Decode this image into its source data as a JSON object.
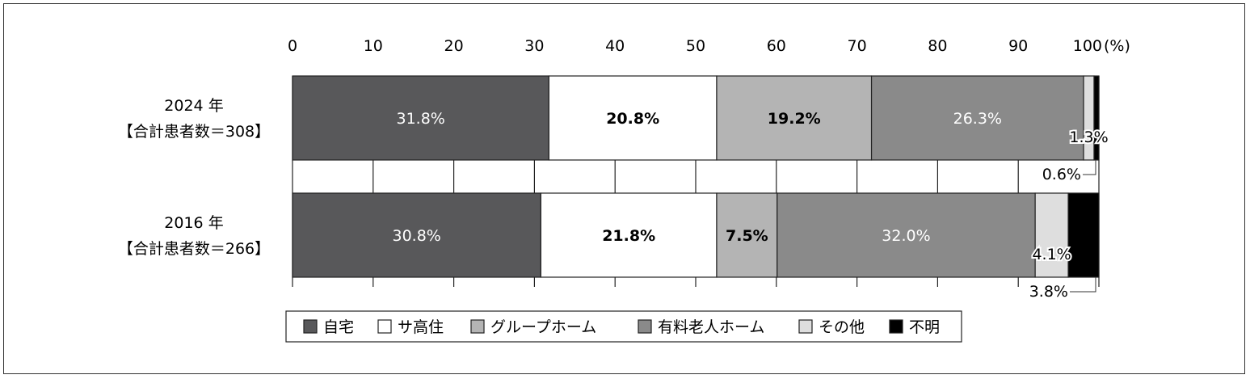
{
  "chart_data": {
    "type": "bar",
    "orientation": "horizontal",
    "stacked": true,
    "percent": true,
    "title": "",
    "xlabel": "",
    "ylabel": "",
    "x_unit": "(%)",
    "xlim": [
      0,
      100
    ],
    "x_ticks": [
      0,
      10,
      20,
      30,
      40,
      50,
      60,
      70,
      80,
      90,
      100
    ],
    "grid": true,
    "legend_position": "bottom",
    "categories": [
      {
        "year": "2024 年",
        "count_label": "【合計患者数＝308】"
      },
      {
        "year": "2016 年",
        "count_label": "【合計患者数＝266】"
      }
    ],
    "series": [
      {
        "name": "自宅",
        "color": "#58585a",
        "label_color": "#ffffff",
        "values": [
          31.8,
          30.8
        ],
        "labels": [
          "31.8%",
          "30.8%"
        ]
      },
      {
        "name": "サ高住",
        "color": "#ffffff",
        "label_color": "#000000",
        "values": [
          20.8,
          21.8
        ],
        "labels": [
          "20.8%",
          "21.8%"
        ]
      },
      {
        "name": "グループホーム",
        "color": "#b4b4b4",
        "label_color": "#000000",
        "values": [
          19.2,
          7.5
        ],
        "labels": [
          "19.2%",
          "7.5%"
        ]
      },
      {
        "name": "有料老人ホーム",
        "color": "#8a8a8a",
        "label_color": "#ffffff",
        "values": [
          26.3,
          32.0
        ],
        "labels": [
          "26.3%",
          "32.0%"
        ]
      },
      {
        "name": "その他",
        "color": "#dedede",
        "label_color": "#000000",
        "values": [
          1.3,
          4.1
        ],
        "labels": [
          "1.3%",
          "4.1%"
        ]
      },
      {
        "name": "不明",
        "color": "#000000",
        "label_color": "#ffffff",
        "values": [
          0.6,
          3.8
        ],
        "labels": [
          "0.6%",
          "3.8%"
        ]
      }
    ]
  }
}
